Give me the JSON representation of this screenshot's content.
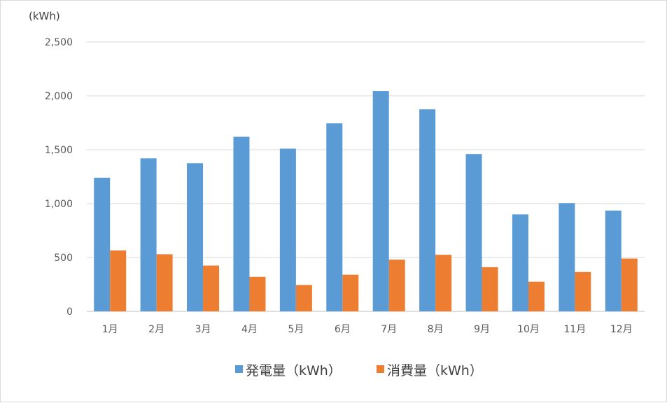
{
  "chart_data": {
    "type": "bar",
    "y_unit_label": "(kWh)",
    "categories": [
      "1月",
      "2月",
      "3月",
      "4月",
      "5月",
      "6月",
      "7月",
      "8月",
      "9月",
      "10月",
      "11月",
      "12月"
    ],
    "series": [
      {
        "name": "発電量（kWh）",
        "color": "#5b9bd5",
        "values": [
          1240,
          1420,
          1375,
          1620,
          1510,
          1745,
          2045,
          1875,
          1460,
          900,
          1005,
          935
        ]
      },
      {
        "name": "消費量（kWh）",
        "color": "#ed7d31",
        "values": [
          565,
          530,
          425,
          320,
          245,
          340,
          480,
          525,
          410,
          275,
          365,
          490
        ]
      }
    ],
    "y_ticks": [
      "0",
      "500",
      "1,000",
      "1,500",
      "2,000",
      "2,500"
    ],
    "y_tick_values": [
      0,
      500,
      1000,
      1500,
      2000,
      2500
    ],
    "ylim": [
      0,
      2500
    ],
    "grid": true,
    "legend_position": "bottom"
  }
}
